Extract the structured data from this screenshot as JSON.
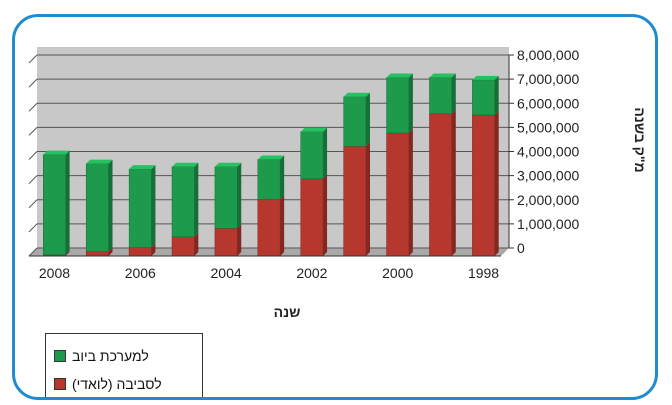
{
  "chart_data": {
    "type": "bar",
    "stacked": true,
    "categories": [
      "1998",
      "1999",
      "2000",
      "2001",
      "2002",
      "2003",
      "2004",
      "2005",
      "2006",
      "2007",
      "2008"
    ],
    "x_tick_labels": [
      "1998",
      "2000",
      "2002",
      "2004",
      "2006",
      "2008"
    ],
    "series": [
      {
        "name": "לסביבה (לואדי)",
        "color": "#b5372d",
        "values": [
          5850000,
          5900000,
          5100000,
          4550000,
          3200000,
          2350000,
          1150000,
          800000,
          350000,
          180000,
          50000
        ]
      },
      {
        "name": "למערכת ביוב",
        "color": "#1e9a4d",
        "values": [
          1450000,
          1500000,
          2300000,
          2050000,
          1950000,
          1650000,
          2550000,
          2900000,
          3250000,
          3650000,
          4150000
        ]
      }
    ],
    "y_tick_labels": [
      "0",
      "1,000,000",
      "2,000,000",
      "3,000,000",
      "4,000,000",
      "5,000,000",
      "6,000,000",
      "7,000,000",
      "8,000,000"
    ],
    "ylim": [
      0,
      8000000
    ],
    "xlabel": "שנה",
    "ylabel": "מ\"ק בשנה",
    "grid": true,
    "legend_position": "bottom-left",
    "x_axis_reversed": true
  }
}
